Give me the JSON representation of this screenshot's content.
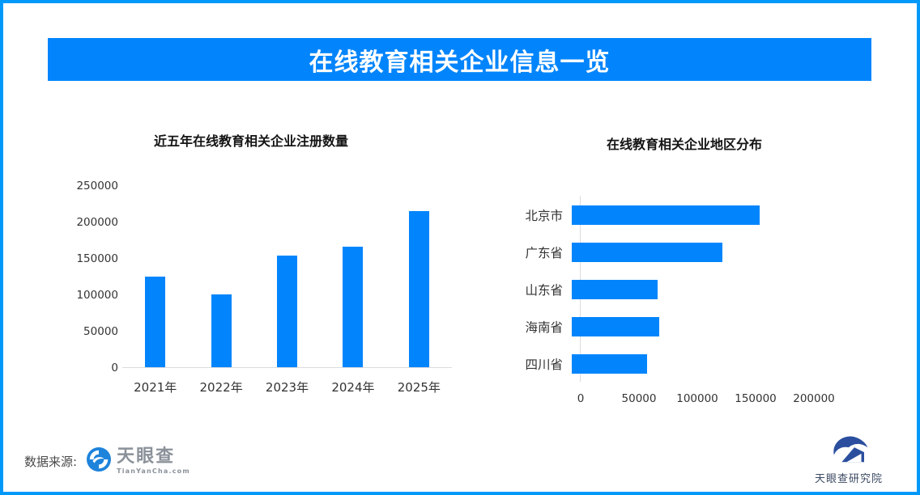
{
  "banner": {
    "title": "在线教育相关企业信息一览"
  },
  "colors": {
    "accent": "#0285fc",
    "border": "#0099fa",
    "axis_line": "#dcdcdc",
    "tyc_logo_blue": "#1e83db",
    "institute_navy": "#2b4f9e"
  },
  "chart_data": [
    {
      "type": "bar",
      "orientation": "vertical",
      "title": "近五年在线教育相关企业注册数量",
      "categories": [
        "2021年",
        "2022年",
        "2023年",
        "2024年",
        "2025年"
      ],
      "values": [
        124000,
        100000,
        153000,
        166000,
        214000
      ],
      "xlabel": "",
      "ylabel": "",
      "ylim": [
        0,
        250000
      ],
      "yticks": [
        0,
        50000,
        100000,
        150000,
        200000,
        250000
      ],
      "grid": false,
      "legend": false,
      "bar_color": "#0285fc"
    },
    {
      "type": "bar",
      "orientation": "horizontal",
      "title": "在线教育相关企业地区分布",
      "categories": [
        "北京市",
        "广东省",
        "山东省",
        "海南省",
        "四川省"
      ],
      "values": [
        155000,
        124000,
        71000,
        72000,
        62000
      ],
      "xlabel": "",
      "ylabel": "",
      "xlim": [
        0,
        250000
      ],
      "xticks": [
        0,
        50000,
        100000,
        150000,
        200000
      ],
      "grid": false,
      "legend": false,
      "bar_color": "#0285fc"
    }
  ],
  "footer": {
    "source_label": "数据来源:",
    "tyc_name": "天眼查",
    "tyc_domain": "TianYanCha.com",
    "institute_name": "天眼查研究院"
  }
}
